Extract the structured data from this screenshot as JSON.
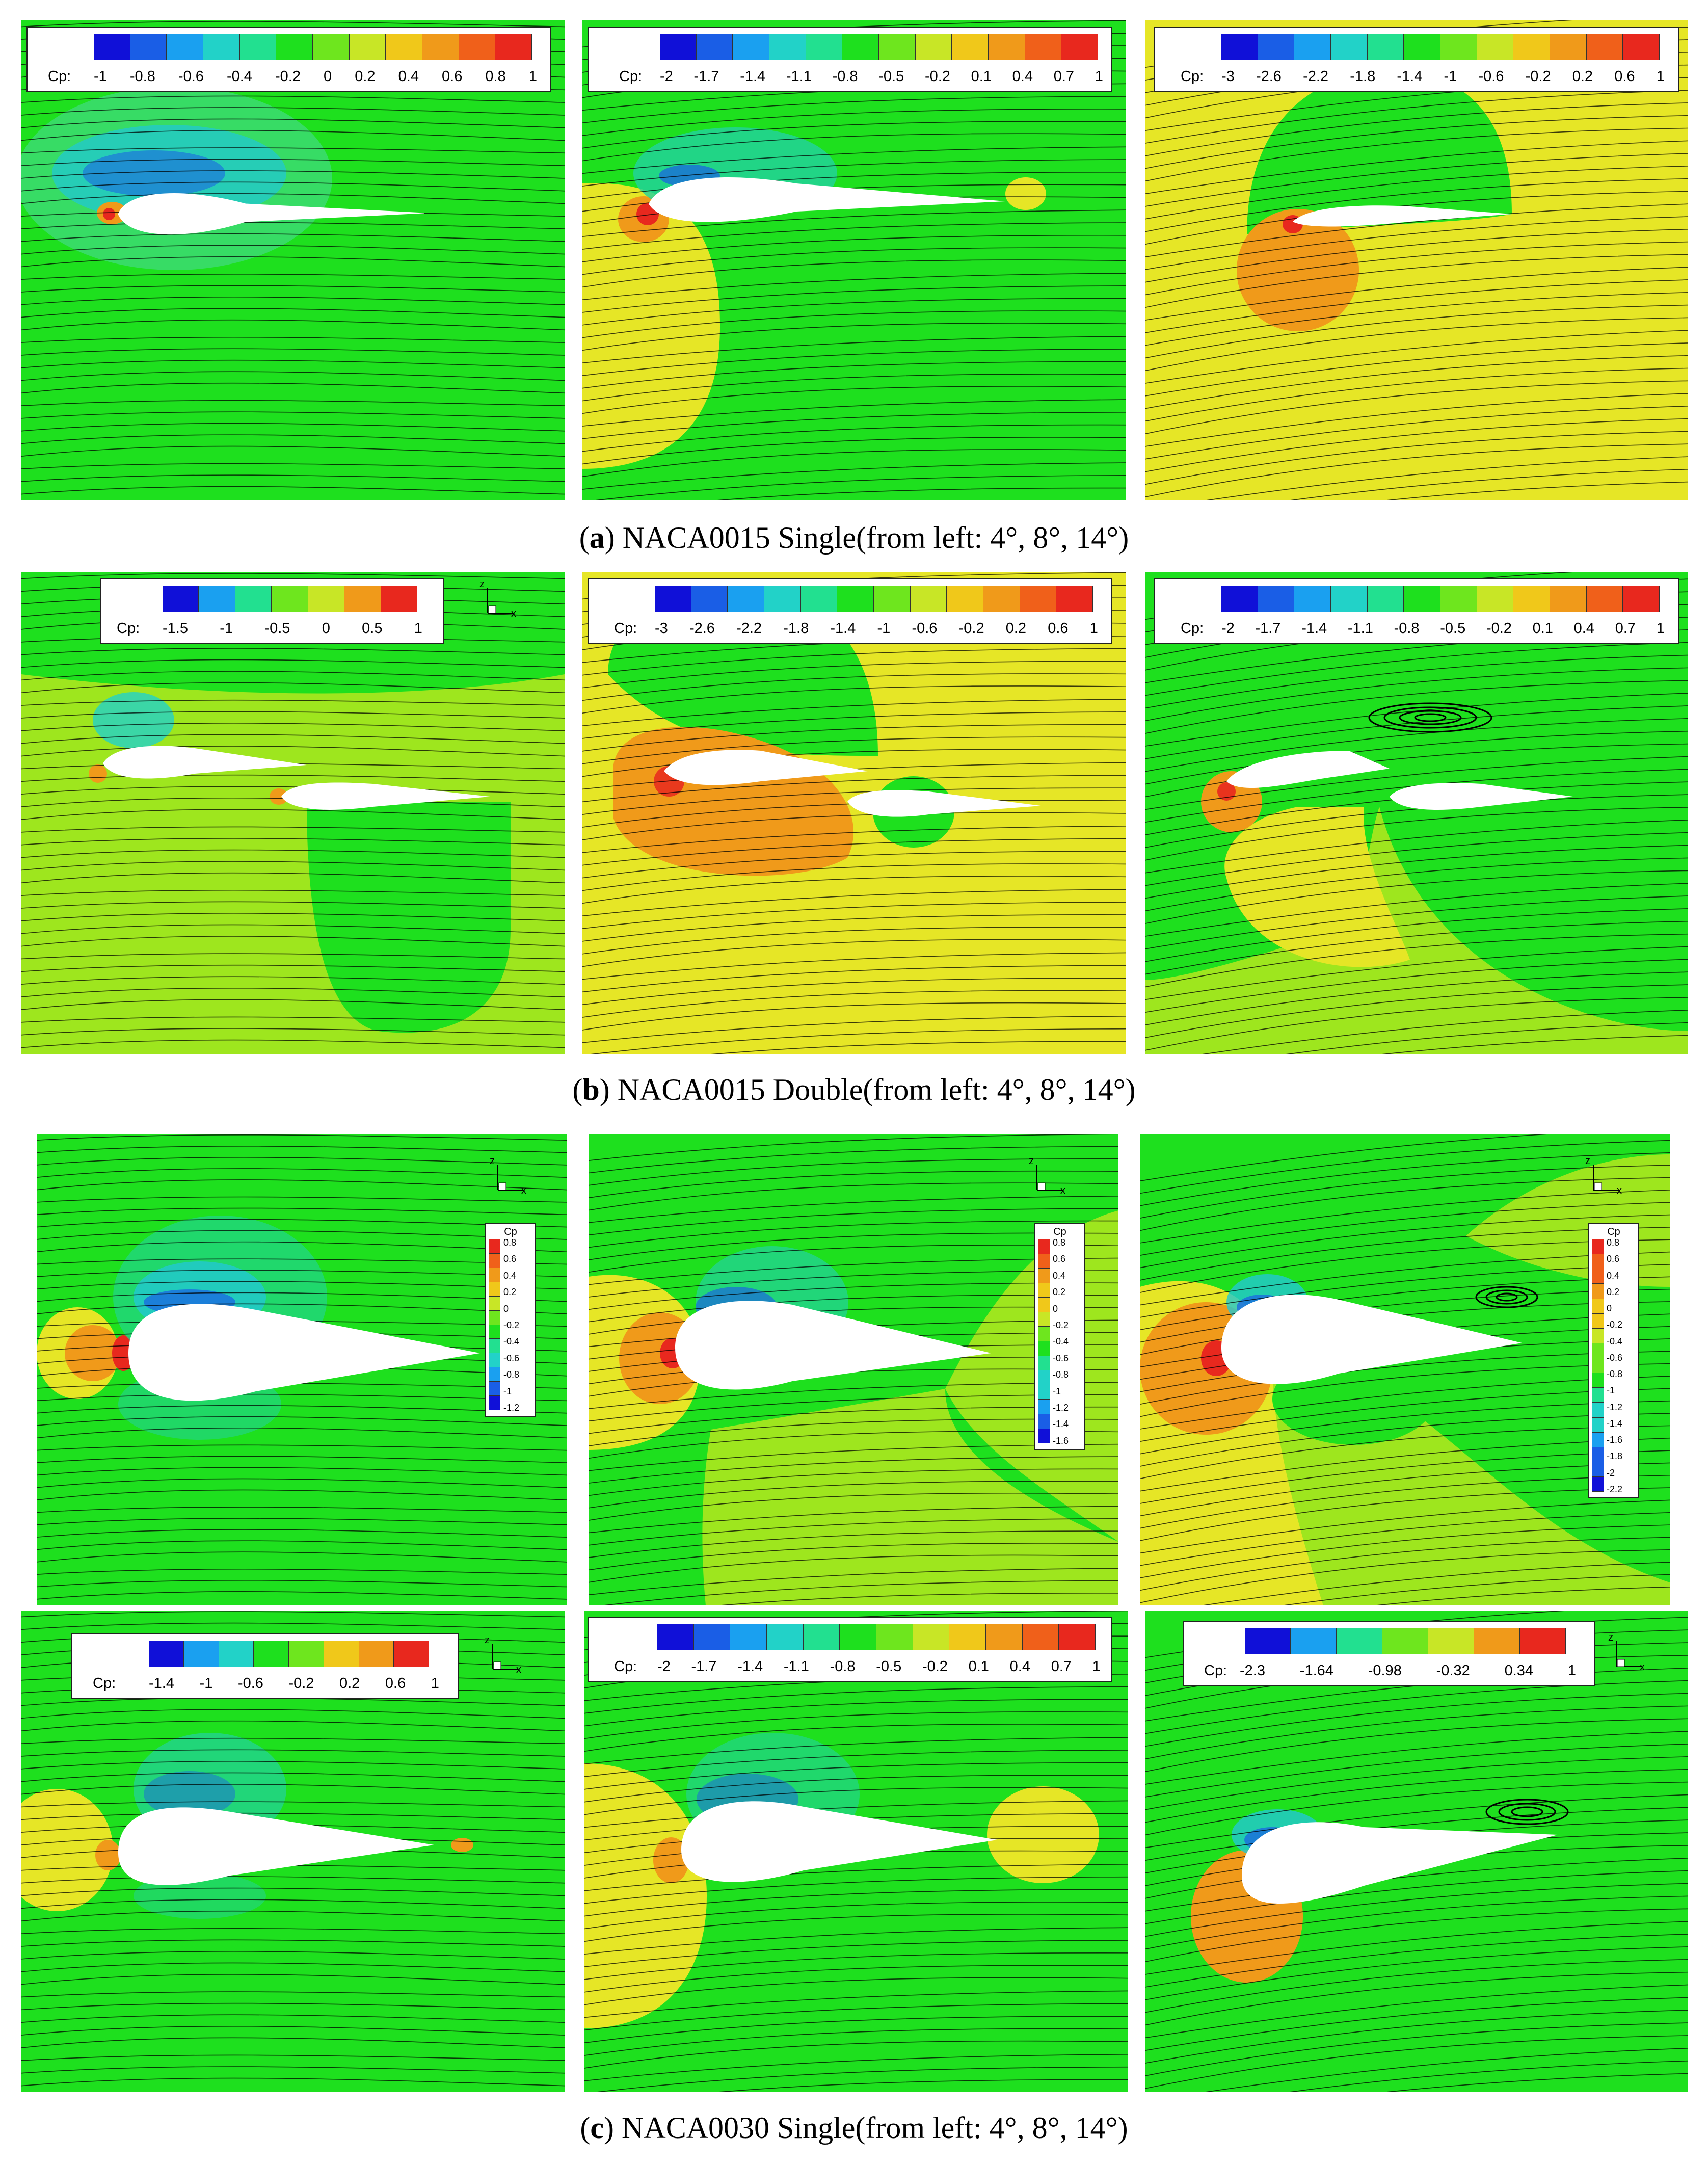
{
  "captions": {
    "a": {
      "letter": "a",
      "text": "NACA0015 Single(from left: 4°, 8°, 14°)"
    },
    "b": {
      "letter": "b",
      "text": "NACA0015 Double(from left: 4°, 8°, 14°)"
    },
    "c": {
      "letter": "c",
      "text": "NACA0030 Single(from left: 4°, 8°, 14°)"
    }
  },
  "legend_title": "Cp:",
  "vlegend_title": "Cp",
  "axes_labels": {
    "z": "z",
    "x": "x"
  },
  "colors": {
    "green": "#1ee01e",
    "yellowgreen": "#9ee61e",
    "yellow": "#e6e626",
    "orange": "#f09a1a",
    "red": "#e8281e",
    "cyan": "#22d2c8",
    "blue": "#1a5ee6",
    "darkblue": "#1a1ad2",
    "streamline": "#000000"
  },
  "panels": [
    {
      "id": "a1",
      "ticks": [
        "-1",
        "-0.8",
        "-0.6",
        "-0.4",
        "-0.2",
        "0",
        "0.2",
        "0.4",
        "0.6",
        "0.8",
        "1"
      ]
    },
    {
      "id": "a2",
      "ticks": [
        "-2",
        "-1.7",
        "-1.4",
        "-1.1",
        "-0.8",
        "-0.5",
        "-0.2",
        "0.1",
        "0.4",
        "0.7",
        "1"
      ]
    },
    {
      "id": "a3",
      "ticks": [
        "-3",
        "-2.6",
        "-2.2",
        "-1.8",
        "-1.4",
        "-1",
        "-0.6",
        "-0.2",
        "0.2",
        "0.6",
        "1"
      ]
    },
    {
      "id": "b1",
      "ticks": [
        "-1.5",
        "-1",
        "-0.5",
        "0",
        "0.5",
        "1"
      ]
    },
    {
      "id": "b2",
      "ticks": [
        "-3",
        "-2.6",
        "-2.2",
        "-1.8",
        "-1.4",
        "-1",
        "-0.6",
        "-0.2",
        "0.2",
        "0.6",
        "1"
      ]
    },
    {
      "id": "b3",
      "ticks": [
        "-2",
        "-1.7",
        "-1.4",
        "-1.1",
        "-0.8",
        "-0.5",
        "-0.2",
        "0.1",
        "0.4",
        "0.7",
        "1"
      ]
    },
    {
      "id": "c1",
      "vticks": [
        "0.8",
        "0.6",
        "0.4",
        "0.2",
        "0",
        "-0.2",
        "-0.4",
        "-0.6",
        "-0.8",
        "-1",
        "-1.2"
      ]
    },
    {
      "id": "c2",
      "vticks": [
        "0.8",
        "0.6",
        "0.4",
        "0.2",
        "0",
        "-0.2",
        "-0.4",
        "-0.6",
        "-0.8",
        "-1",
        "-1.2",
        "-1.4",
        "-1.6"
      ]
    },
    {
      "id": "c3",
      "vticks": [
        "0.8",
        "0.6",
        "0.4",
        "0.2",
        "0",
        "-0.2",
        "-0.4",
        "-0.6",
        "-0.8",
        "-1",
        "-1.2",
        "-1.4",
        "-1.6",
        "-1.8",
        "-2",
        "-2.2"
      ]
    },
    {
      "id": "c4",
      "ticks": [
        "-1.4",
        "-1",
        "-0.6",
        "-0.2",
        "0.2",
        "0.6",
        "1"
      ]
    },
    {
      "id": "c5",
      "ticks": [
        "-2",
        "-1.7",
        "-1.4",
        "-1.1",
        "-0.8",
        "-0.5",
        "-0.2",
        "0.1",
        "0.4",
        "0.7",
        "1"
      ]
    },
    {
      "id": "c6",
      "ticks": [
        "-2.3",
        "-1.64",
        "-0.98",
        "-0.32",
        "0.34",
        "1"
      ]
    }
  ]
}
